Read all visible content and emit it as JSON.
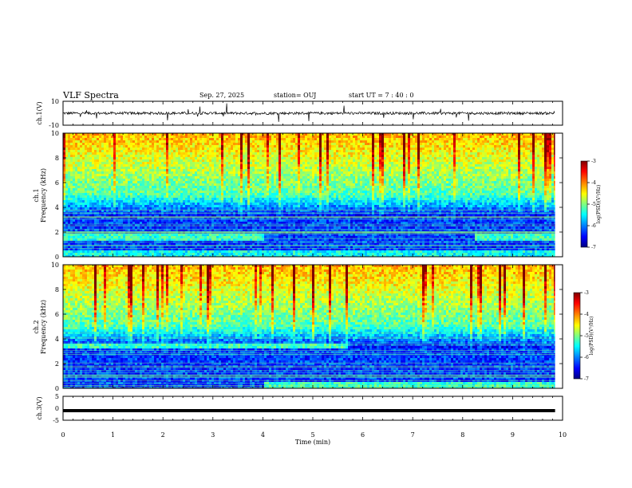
{
  "header": {
    "title": "VLF Spectra",
    "date": "Sep. 27, 2025",
    "station": "station= OUJ",
    "start": "start  UT  =   7 : 40 : 0"
  },
  "chart_data": [
    {
      "type": "line",
      "panel": "ch1-waveform",
      "ylabel": "ch.1(V)",
      "ylim": [
        -10,
        10
      ],
      "yticks": [
        "10",
        "-10"
      ],
      "baseline": 0
    },
    {
      "type": "heatmap",
      "panel": "ch1-spectrogram",
      "ylabel_channel": "ch.1",
      "ylabel": "Frequency (kHz)",
      "ylim": [
        0,
        10
      ],
      "yticks": [
        "0",
        "2",
        "4",
        "6",
        "8",
        "10"
      ],
      "colorbar": {
        "label": "log(PSD)(V²/Hz)",
        "range": [
          -7,
          -3
        ],
        "ticks": [
          "-3",
          "-4",
          "-5",
          "-6",
          "-7"
        ]
      }
    },
    {
      "type": "heatmap",
      "panel": "ch2-spectrogram",
      "ylabel_channel": "ch.2",
      "ylabel": "Frequency (kHz)",
      "ylim": [
        0,
        10
      ],
      "yticks": [
        "0",
        "2",
        "4",
        "6",
        "8",
        "10"
      ],
      "colorbar": {
        "label": "log(PSD)(V²/Hz)",
        "range": [
          -7,
          -3
        ],
        "ticks": [
          "-3",
          "-4",
          "-5",
          "-6",
          "-7"
        ]
      }
    },
    {
      "type": "line",
      "panel": "ch3-level",
      "ylabel": "ch.3(V)",
      "ylim": [
        -5,
        5
      ],
      "yticks": [
        "5",
        "0",
        "-5"
      ],
      "baseline": -1
    }
  ],
  "xaxis": {
    "xlabel": "Time (min)",
    "xlim": [
      0,
      10
    ],
    "xticks": [
      "0",
      "1",
      "2",
      "3",
      "4",
      "5",
      "6",
      "7",
      "8",
      "9",
      "10"
    ],
    "data_end": 9.85
  },
  "colors": {
    "cmap": [
      "#000080",
      "#0000ff",
      "#0080ff",
      "#00ffff",
      "#80ff80",
      "#ffff00",
      "#ff8000",
      "#ff0000",
      "#800000"
    ]
  }
}
